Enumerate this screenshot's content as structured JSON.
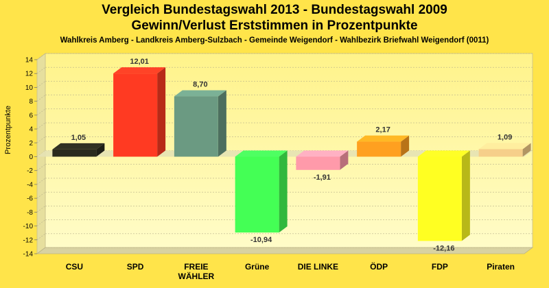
{
  "header": {
    "title1": "Vergleich Bundestagswahl 2013 - Bundestagswahl 2009",
    "title2": "Gewinn/Verlust Erststimmen in Prozentpunkte",
    "subtitle": "Wahlkreis Amberg - Landkreis Amberg-Sulzbach - Gemeinde Weigendorf - Wahlbezirk Briefwahl Weigendorf (0011)"
  },
  "chart_data": {
    "type": "bar",
    "title": "Vergleich Bundestagswahl 2013 - Bundestagswahl 2009",
    "subtitle": "Gewinn/Verlust Erststimmen in Prozentpunkte",
    "ylabel": "Prozentpunkte",
    "xlabel": "",
    "ylim": [
      -14,
      14
    ],
    "yticks": [
      14,
      12,
      10,
      8,
      6,
      4,
      2,
      0,
      -2,
      -4,
      -6,
      -8,
      -10,
      -12,
      -14
    ],
    "grid": true,
    "categories": [
      "CSU",
      "SPD",
      "FREIE WÄHLER",
      "Grüne",
      "DIE LINKE",
      "ÖDP",
      "FDP",
      "Piraten"
    ],
    "category_lines": [
      [
        "CSU"
      ],
      [
        "SPD"
      ],
      [
        "FREIE",
        "WÄHLER"
      ],
      [
        "Grüne"
      ],
      [
        "DIE LINKE"
      ],
      [
        "ÖDP"
      ],
      [
        "FDP"
      ],
      [
        "Piraten"
      ]
    ],
    "values": [
      1.05,
      12.01,
      8.7,
      -10.94,
      -1.91,
      2.17,
      -12.16,
      1.09
    ],
    "value_labels": [
      "1,05",
      "12,01",
      "8,70",
      "-10,94",
      "-1,91",
      "2,17",
      "-12,16",
      "1,09"
    ],
    "colors": [
      "#2b2b1e",
      "#ff3a22",
      "#6b9a82",
      "#44ff55",
      "#ff9aaa",
      "#ffa020",
      "#ffff22",
      "#f6cf8a"
    ],
    "background_color": "#ffe44a",
    "plot_background": "#fff7a0",
    "zero_band_color": "#e6e2b4"
  }
}
